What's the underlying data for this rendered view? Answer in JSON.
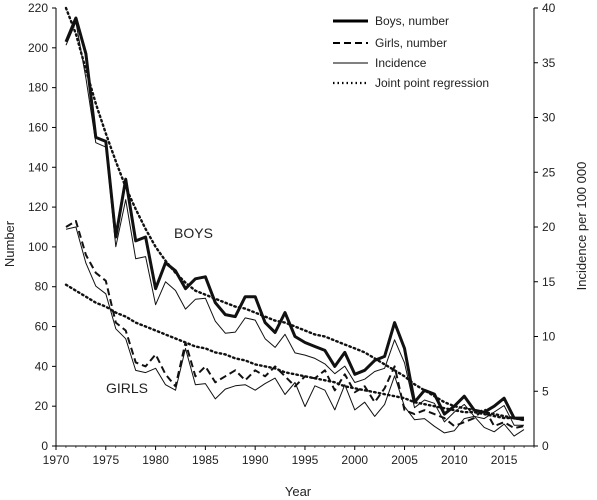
{
  "chart_data": {
    "type": "line",
    "title": "",
    "xlabel": "Year",
    "ylabel": "Number",
    "ylabel_right": "Incidence per 100 000",
    "xlim": [
      1970,
      2018
    ],
    "ylim": [
      0,
      220
    ],
    "ylim_right": [
      0,
      40
    ],
    "x_ticks": [
      1970,
      1975,
      1980,
      1985,
      1990,
      1995,
      2000,
      2005,
      2010,
      2015
    ],
    "y_ticks": [
      0,
      20,
      40,
      60,
      80,
      100,
      120,
      140,
      160,
      180,
      200,
      220
    ],
    "y_ticks_right": [
      0,
      5,
      10,
      15,
      20,
      25,
      30,
      35,
      40
    ],
    "grid": false,
    "legend_position": "top-right",
    "annotations": [
      {
        "id": "boys",
        "text": "BOYS"
      },
      {
        "id": "girls",
        "text": "GIRLS"
      }
    ],
    "x": [
      1971,
      1972,
      1973,
      1974,
      1975,
      1976,
      1977,
      1978,
      1979,
      1980,
      1981,
      1982,
      1983,
      1984,
      1985,
      1986,
      1987,
      1988,
      1989,
      1990,
      1991,
      1992,
      1993,
      1994,
      1995,
      1996,
      1997,
      1998,
      1999,
      2000,
      2001,
      2002,
      2003,
      2004,
      2005,
      2006,
      2007,
      2008,
      2009,
      2010,
      2011,
      2012,
      2013,
      2014,
      2015,
      2016,
      2017
    ],
    "series": [
      {
        "name": "Boys, number",
        "axis": "left",
        "style": "thick-solid",
        "color": "#111111",
        "values": [
          203,
          215,
          197,
          155,
          153,
          105,
          134,
          103,
          105,
          79,
          92,
          88,
          79,
          84,
          85,
          72,
          66,
          65,
          75,
          75,
          62,
          57,
          67,
          55,
          52,
          50,
          48,
          40,
          47,
          36,
          38,
          43,
          45,
          62,
          49,
          22,
          28,
          26,
          16,
          20,
          25,
          18,
          17,
          20,
          24,
          14,
          14
        ]
      },
      {
        "name": "Girls, number",
        "axis": "left",
        "style": "dashed",
        "color": "#111111",
        "values": [
          110,
          113,
          96,
          87,
          83,
          62,
          58,
          42,
          40,
          46,
          36,
          30,
          52,
          35,
          40,
          32,
          35,
          38,
          33,
          38,
          35,
          40,
          35,
          30,
          35,
          34,
          38,
          28,
          36,
          27,
          30,
          22,
          29,
          40,
          18,
          16,
          18,
          16,
          14,
          10,
          12,
          14,
          19,
          10,
          12,
          9,
          10
        ]
      },
      {
        "name": "Incidence",
        "axis": "right",
        "style": "thin-solid",
        "color": "#111111",
        "values": [
          19.8,
          20.0,
          16.7,
          14.6,
          13.9,
          10.7,
          9.8,
          6.9,
          6.7,
          7.1,
          5.6,
          5.1,
          8.9,
          5.6,
          5.7,
          4.3,
          5.2,
          5.5,
          5.6,
          5.1,
          5.7,
          6.2,
          4.7,
          5.8,
          3.6,
          5.5,
          5.1,
          3.3,
          5.6,
          3.3,
          4.0,
          2.7,
          3.8,
          6.4,
          3.6,
          2.4,
          2.5,
          1.8,
          1.2,
          1.4,
          2.5,
          2.7,
          1.7,
          1.3,
          2.0,
          0.9,
          1.5
        ]
      },
      {
        "name": "Incidence",
        "axis": "right",
        "style": "thin-solid",
        "color": "#111111",
        "values": [
          36.6,
          38.7,
          33.6,
          27.7,
          27.3,
          18.2,
          22.5,
          17.1,
          17.3,
          12.9,
          15.0,
          14.2,
          12.5,
          13.4,
          13.5,
          11.4,
          10.3,
          10.4,
          11.7,
          11.5,
          9.8,
          9.0,
          10.2,
          8.5,
          8.3,
          8.0,
          7.5,
          6.6,
          7.3,
          5.8,
          6.1,
          6.8,
          7.1,
          9.7,
          7.6,
          3.5,
          4.2,
          3.9,
          2.2,
          3.1,
          3.8,
          2.7,
          2.5,
          3.1,
          3.7,
          1.9,
          1.9
        ]
      },
      {
        "name": "Joint point regression",
        "axis": "left",
        "style": "dotted",
        "color": "#111111",
        "values": [
          220,
          207,
          189,
          172,
          157,
          143,
          130,
          119,
          109,
          100,
          93,
          87,
          82,
          78,
          76,
          74,
          72,
          70,
          69,
          67,
          65,
          63,
          62,
          60,
          58,
          56,
          55,
          53,
          51,
          49,
          47,
          44,
          41,
          38,
          35,
          31,
          28,
          25,
          22,
          20,
          19,
          18,
          17,
          16,
          15,
          14,
          13
        ]
      },
      {
        "name": "Joint point regression",
        "axis": "left",
        "style": "dotted",
        "color": "#111111",
        "values": [
          81,
          78,
          75,
          72,
          70,
          67,
          65,
          62,
          60,
          58,
          56,
          54,
          52,
          50,
          49,
          47,
          46,
          44,
          43,
          41,
          40,
          39,
          37,
          36,
          35,
          34,
          33,
          32,
          30,
          29,
          28,
          27,
          26,
          25,
          24,
          22,
          21,
          20,
          19,
          18,
          17,
          17,
          16,
          15,
          14,
          14,
          13
        ]
      }
    ],
    "legend": [
      {
        "label": "Boys, number",
        "style": "thick-solid"
      },
      {
        "label": "Girls, number",
        "style": "dashed"
      },
      {
        "label": "Incidence",
        "style": "thin-solid"
      },
      {
        "label": "Joint point regression",
        "style": "dotted"
      }
    ]
  }
}
